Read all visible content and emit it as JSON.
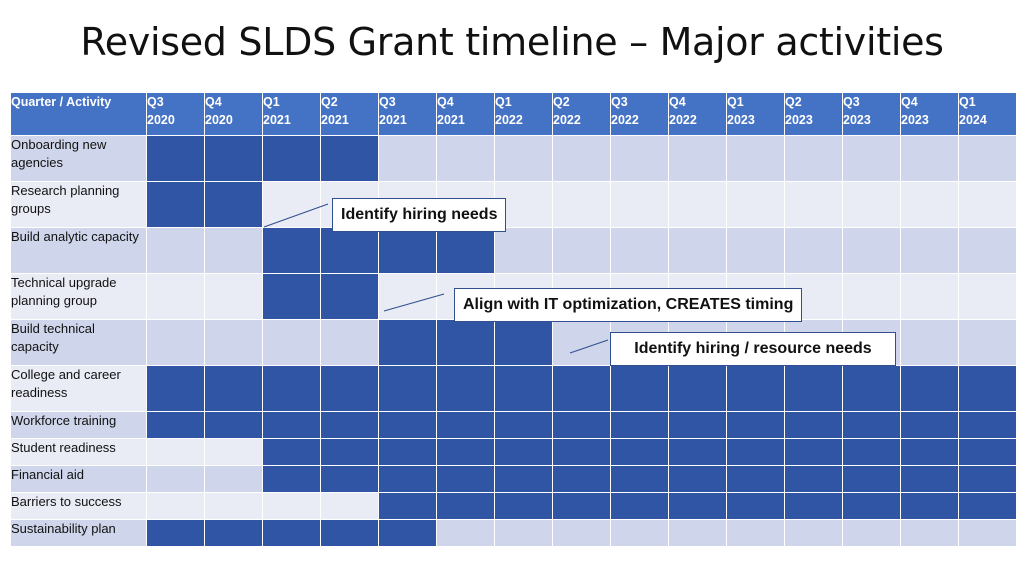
{
  "title": "Revised SLDS Grant timeline – Major activities",
  "header": {
    "first": "Quarter / Activity",
    "quarters": [
      [
        "Q3",
        "2020"
      ],
      [
        "Q4",
        "2020"
      ],
      [
        "Q1",
        "2021"
      ],
      [
        "Q2",
        "2021"
      ],
      [
        "Q3",
        "2021"
      ],
      [
        "Q4",
        "2021"
      ],
      [
        "Q1",
        "2022"
      ],
      [
        "Q2",
        "2022"
      ],
      [
        "Q3",
        "2022"
      ],
      [
        "Q4",
        "2022"
      ],
      [
        "Q1",
        "2023"
      ],
      [
        "Q2",
        "2023"
      ],
      [
        "Q3",
        "2023"
      ],
      [
        "Q4",
        "2023"
      ],
      [
        "Q1",
        "2024"
      ]
    ]
  },
  "rows": [
    {
      "label": "Onboarding new agencies",
      "start": 0,
      "end": 3
    },
    {
      "label": "Research planning groups",
      "start": 0,
      "end": 1
    },
    {
      "label": "Build analytic capacity",
      "start": 2,
      "end": 5
    },
    {
      "label": "Technical upgrade planning group",
      "start": 2,
      "end": 3
    },
    {
      "label": "Build technical capacity",
      "start": 4,
      "end": 6
    },
    {
      "label": "College and career readiness",
      "start": 0,
      "end": 14
    },
    {
      "label": "Workforce training",
      "start": 0,
      "end": 14
    },
    {
      "label": "Student readiness",
      "start": 2,
      "end": 14
    },
    {
      "label": "Financial aid",
      "start": 2,
      "end": 14
    },
    {
      "label": "Barriers to success",
      "start": 4,
      "end": 14
    },
    {
      "label": "Sustainability plan",
      "start": 0,
      "end": 4
    }
  ],
  "callouts": {
    "c1": "Identify hiring needs",
    "c2": "Align with IT optimization, CREATES timing",
    "c3": "Identify hiring / resource needs"
  },
  "colors": {
    "header": "#4472c4",
    "bar": "#2f55a4",
    "row_odd": "#cfd5ea",
    "row_even": "#e9ebf5"
  }
}
